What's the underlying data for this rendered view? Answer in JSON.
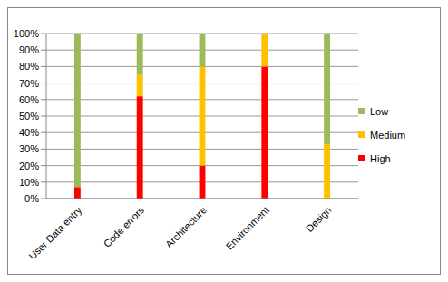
{
  "chart_data": {
    "type": "bar",
    "stacked": true,
    "grid": true,
    "legend": "right",
    "categories": [
      "User Data entry",
      "Code errors",
      "Architecture",
      "Environment",
      "Design"
    ],
    "series": [
      {
        "name": "High",
        "color": "#ff0000",
        "values": [
          7,
          62,
          20,
          80,
          0
        ]
      },
      {
        "name": "Medium",
        "color": "#ffc000",
        "values": [
          0,
          13,
          60,
          20,
          33
        ]
      },
      {
        "name": "Low",
        "color": "#9bbb59",
        "values": [
          93,
          25,
          20,
          0,
          67
        ]
      }
    ],
    "ylim": [
      0,
      100
    ],
    "yticks": [
      {
        "value": 0,
        "label": "0%"
      },
      {
        "value": 10,
        "label": "10%"
      },
      {
        "value": 20,
        "label": "20%"
      },
      {
        "value": 30,
        "label": "30%"
      },
      {
        "value": 40,
        "label": "40%"
      },
      {
        "value": 50,
        "label": "50%"
      },
      {
        "value": 60,
        "label": "60%"
      },
      {
        "value": 70,
        "label": "70%"
      },
      {
        "value": 80,
        "label": "80%"
      },
      {
        "value": 90,
        "label": "90%"
      },
      {
        "value": 100,
        "label": "100%"
      }
    ]
  }
}
